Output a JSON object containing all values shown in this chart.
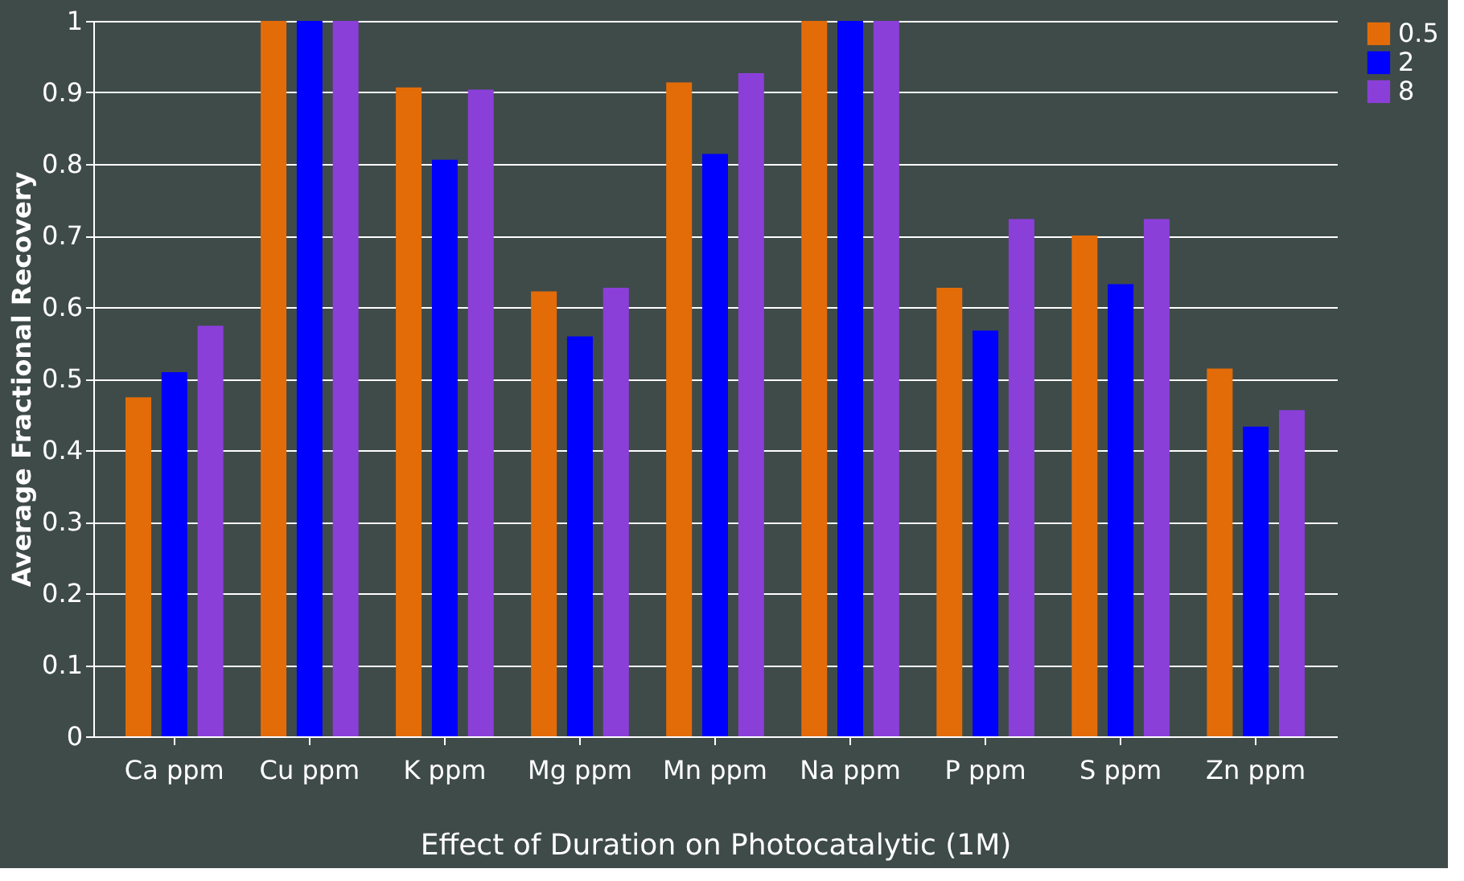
{
  "chart_data": {
    "type": "bar",
    "xlabel": "Effect of Duration on Photocatalytic (1M)",
    "ylabel": "Average Fractional Recovery",
    "categories": [
      "Ca ppm",
      "Cu ppm",
      "K ppm",
      "Mg ppm",
      "Mn ppm",
      "Na ppm",
      "P ppm",
      "S ppm",
      "Zn ppm"
    ],
    "series": [
      {
        "name": "0.5",
        "color": "#e36c09",
        "values": [
          0.474,
          1,
          0.907,
          0.622,
          0.914,
          1,
          0.627,
          0.7,
          0.514
        ]
      },
      {
        "name": "2",
        "color": "#0000ff",
        "values": [
          0.509,
          1,
          0.806,
          0.559,
          0.814,
          1,
          0.567,
          0.632,
          0.433
        ]
      },
      {
        "name": "8",
        "color": "#8b3fd9",
        "values": [
          0.574,
          1,
          0.904,
          0.627,
          0.927,
          1,
          0.723,
          0.723,
          0.456
        ]
      }
    ],
    "ylim": [
      0,
      1
    ],
    "yticks": [
      0,
      0.1,
      0.2,
      0.3,
      0.4,
      0.5,
      0.6,
      0.7,
      0.8,
      0.9,
      1
    ],
    "grid": "y",
    "legend": "right"
  }
}
